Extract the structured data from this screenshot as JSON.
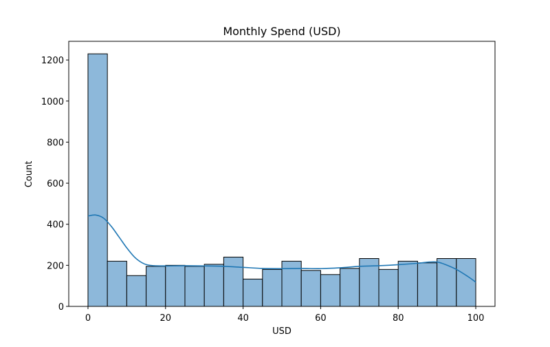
{
  "chart_data": {
    "type": "bar",
    "title": "Monthly Spend (USD)",
    "xlabel": "USD",
    "ylabel": "Count",
    "xlim": [
      -4.96,
      104.96
    ],
    "ylim": [
      0,
      1291
    ],
    "x_ticks": [
      0,
      20,
      40,
      60,
      80,
      100
    ],
    "y_ticks": [
      0,
      200,
      400,
      600,
      800,
      1000,
      1200
    ],
    "bin_width": 5,
    "bin_starts": [
      0,
      5,
      10,
      15,
      20,
      25,
      30,
      35,
      40,
      45,
      50,
      55,
      60,
      65,
      70,
      75,
      80,
      85,
      90,
      95
    ],
    "values": [
      1230,
      220,
      150,
      195,
      200,
      195,
      205,
      240,
      133,
      180,
      220,
      175,
      155,
      185,
      233,
      180,
      220,
      212,
      233,
      233
    ],
    "kde": {
      "x": [
        0,
        2,
        4,
        6,
        8,
        10,
        12,
        14,
        16,
        20,
        25,
        30,
        35,
        40,
        45,
        50,
        55,
        60,
        65,
        70,
        75,
        80,
        85,
        88,
        90,
        92,
        95,
        98,
        100
      ],
      "y": [
        440,
        445,
        430,
        390,
        338,
        285,
        240,
        212,
        200,
        197,
        198,
        197,
        195,
        190,
        185,
        184,
        185,
        184,
        188,
        195,
        198,
        203,
        210,
        216,
        216,
        205,
        180,
        145,
        118
      ]
    },
    "bar_color": "#8db8da",
    "bar_edge_color": "#000000",
    "kde_color": "#1f77b4",
    "grid": false,
    "legend": "none"
  }
}
